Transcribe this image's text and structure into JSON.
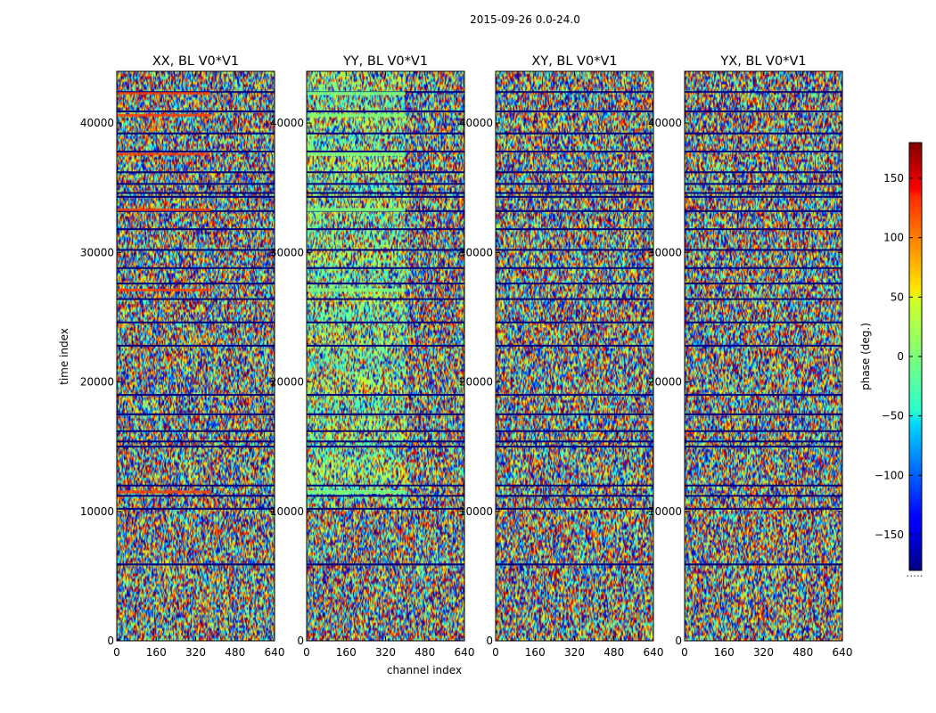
{
  "chart_data": {
    "type": "heatmap",
    "title": "2015-09-26 0.0-24.0",
    "xlabel": "channel index",
    "ylabel": "time index",
    "xlim": [
      0,
      640
    ],
    "ylim": [
      0,
      44000
    ],
    "xticks": [
      0,
      160,
      320,
      480,
      640
    ],
    "yticks": [
      0,
      10000,
      20000,
      30000,
      40000
    ],
    "panels": [
      {
        "title": "XX, BL V0*V1",
        "polarization": "XX"
      },
      {
        "title": "YY, BL V0*V1",
        "polarization": "YY"
      },
      {
        "title": "XY, BL V0*V1",
        "polarization": "XY"
      },
      {
        "title": "YX, BL V0*V1",
        "polarization": "YX"
      }
    ],
    "colorbar": {
      "label": "phase (deg.)",
      "range": [
        -180,
        180
      ],
      "ticks": [
        -150,
        -100,
        -50,
        0,
        50,
        100,
        150
      ],
      "tick_labels": [
        "−150",
        "−100",
        "−50",
        "0",
        "50",
        "100",
        "150"
      ],
      "colormap": "jet",
      "footer": "....."
    }
  }
}
